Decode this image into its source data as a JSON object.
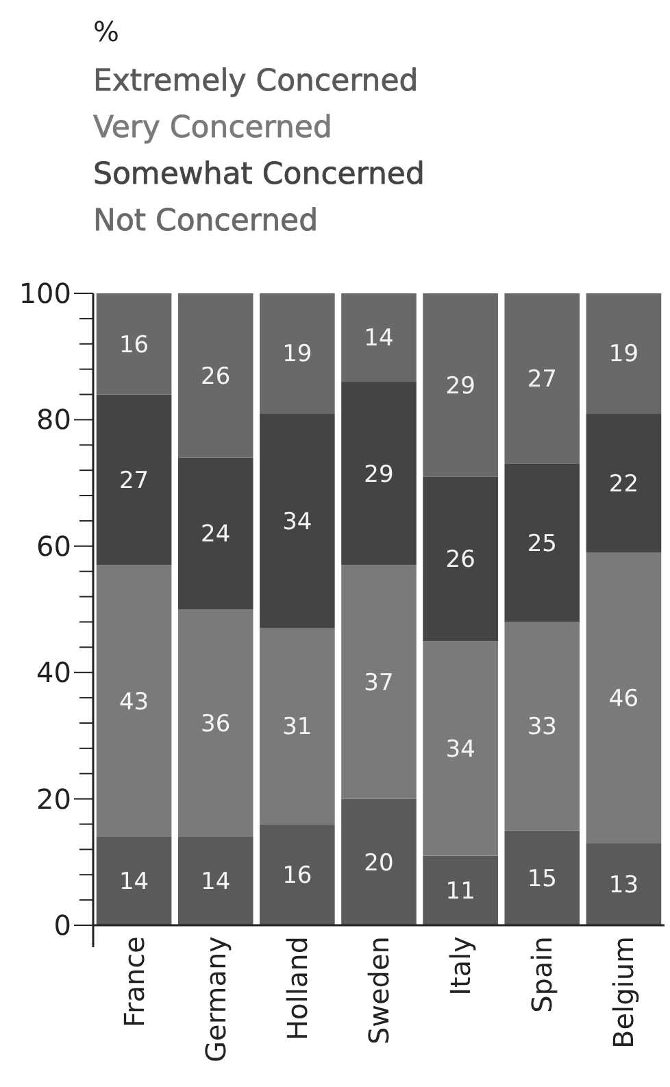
{
  "chart_data": {
    "type": "bar",
    "stacked": true,
    "annotations": [
      "%"
    ],
    "categories": [
      "France",
      "Germany",
      "Holland",
      "Sweden",
      "Italy",
      "Spain",
      "Belgium"
    ],
    "series": [
      {
        "name": "Extremely Concerned",
        "color": "#5a5a5a",
        "values": [
          14,
          14,
          16,
          20,
          11,
          15,
          13
        ]
      },
      {
        "name": "Very Concerned",
        "color": "#7a7a7a",
        "values": [
          43,
          36,
          31,
          37,
          34,
          33,
          46
        ]
      },
      {
        "name": "Somewhat Concerned",
        "color": "#444444",
        "values": [
          27,
          24,
          34,
          29,
          26,
          25,
          22
        ]
      },
      {
        "name": "Not Concerned",
        "color": "#696969",
        "values": [
          16,
          26,
          19,
          14,
          29,
          27,
          19
        ]
      }
    ],
    "ylim": [
      0,
      100
    ],
    "yticks": [
      0,
      {
        "value": 4,
        "label": null
      },
      {
        "value": 8,
        "label": null
      },
      {
        "value": 12,
        "label": null
      },
      {
        "value": 16,
        "label": null
      },
      20,
      {
        "value": 24,
        "label": null
      },
      {
        "value": 28,
        "label": null
      },
      {
        "value": 32,
        "label": null
      },
      {
        "value": 36,
        "label": null
      },
      40,
      {
        "value": 44,
        "label": null
      },
      {
        "value": 48,
        "label": null
      },
      {
        "value": 52,
        "label": null
      },
      {
        "value": 56,
        "label": null
      },
      60,
      {
        "value": 64,
        "label": null
      },
      {
        "value": 68,
        "label": null
      },
      {
        "value": 72,
        "label": null
      },
      {
        "value": 76,
        "label": null
      },
      80,
      {
        "value": 84,
        "label": null
      },
      {
        "value": 88,
        "label": null
      },
      {
        "value": 92,
        "label": null
      },
      {
        "value": 96,
        "label": null
      },
      100
    ],
    "data_labels": true,
    "legend": "top left",
    "grid": false
  }
}
